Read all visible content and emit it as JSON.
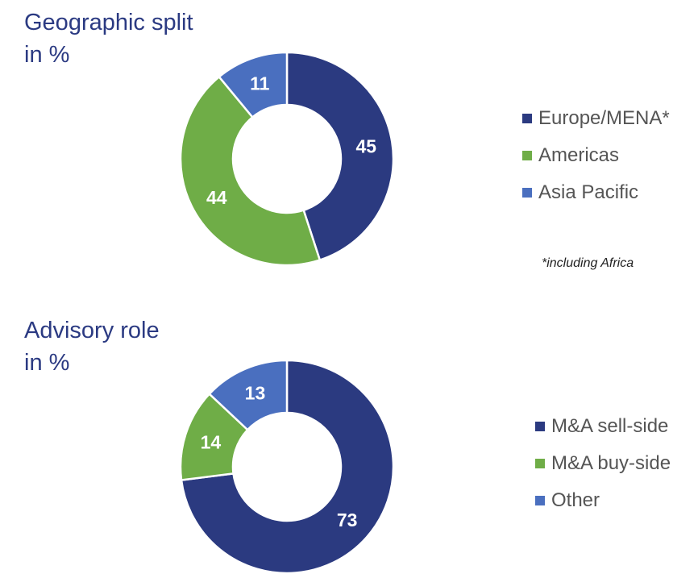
{
  "chart_data": [
    {
      "type": "pie",
      "title": [
        "Geographic split",
        "in %"
      ],
      "categories": [
        "Europe/MENA*",
        "Americas",
        "Asia Pacific"
      ],
      "values": [
        45,
        44,
        11
      ],
      "colors": [
        "#2b3a80",
        "#6fad47",
        "#4a6fbf"
      ],
      "legend_position": "right",
      "footnote": "*including Africa"
    },
    {
      "type": "pie",
      "title": [
        "Advisory role",
        "in %"
      ],
      "categories": [
        "M&A sell-side",
        "M&A buy-side",
        "Other"
      ],
      "values": [
        73,
        14,
        13
      ],
      "colors": [
        "#2b3a80",
        "#6fad47",
        "#4a6fbf"
      ],
      "legend_position": "right"
    }
  ]
}
